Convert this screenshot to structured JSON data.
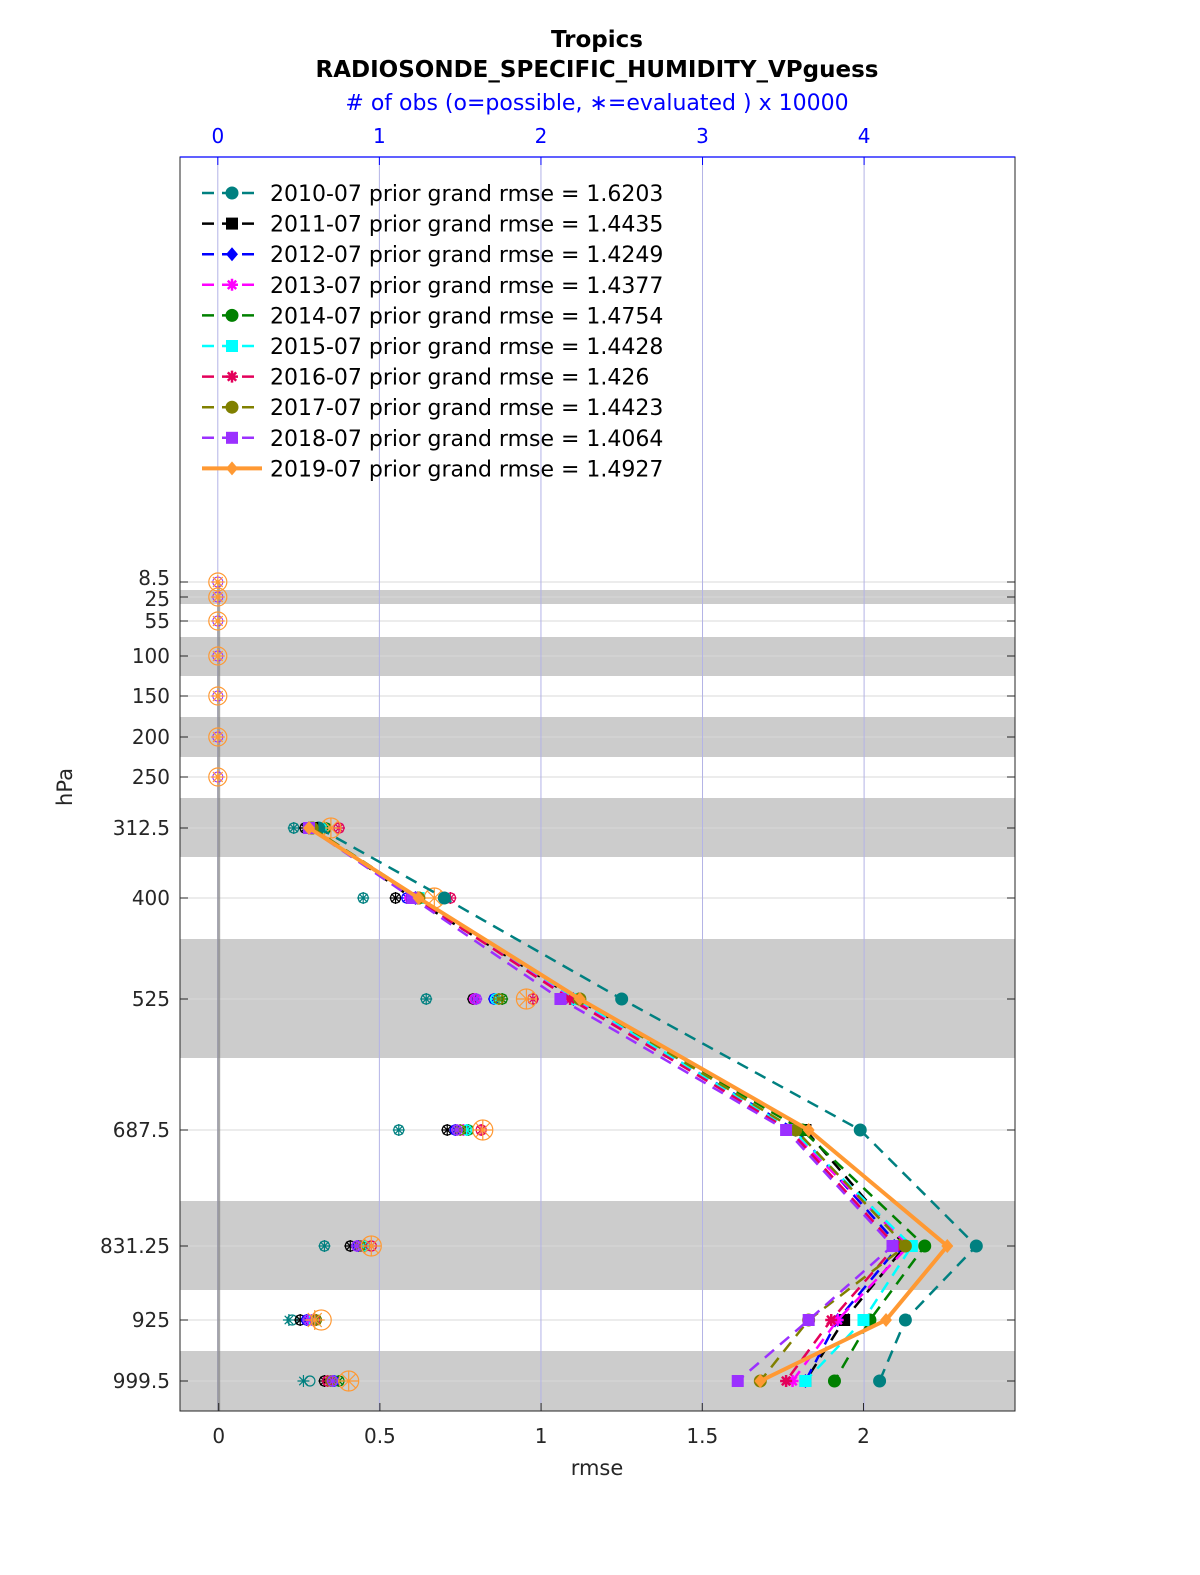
{
  "chart_data": {
    "type": "line",
    "title": "Tropics",
    "subtitle": "RADIOSONDE_SPECIFIC_HUMIDITY_VPguess",
    "top_axis_label": "# of obs (o=possible, ∗=evaluated ) x 10000",
    "top_axis_ticks": [
      "0",
      "1",
      "2",
      "3",
      "4"
    ],
    "top_axis_range": [
      -0.234,
      4.934
    ],
    "xlabel": "rmse",
    "ylabel": "hPa",
    "xlim": [
      -0.12,
      2.47
    ],
    "x_ticks": [
      "0",
      "0.5",
      "1",
      "1.5",
      "2"
    ],
    "levels": [
      8.5,
      25,
      55,
      100,
      150,
      200,
      250,
      312.5,
      400,
      525,
      687.5,
      831.25,
      925,
      999.5
    ],
    "level_labels": [
      "8.5",
      "25",
      "55",
      "100",
      "150",
      "200",
      "250",
      "312.5",
      "400",
      "525",
      "687.5",
      "831.25",
      "925",
      "999.5"
    ],
    "legend_position": "top-left",
    "grid": true,
    "series": [
      {
        "name": "2010-07 prior grand rmse = 1.6203",
        "color": "#008080",
        "dash": true,
        "marker": "circle",
        "rmse": [
          0.31,
          0.7,
          1.25,
          1.99,
          2.35,
          2.13,
          2.05
        ],
        "possible": [
          0.47,
          0.9,
          1.29,
          1.12,
          0.66,
          0.46,
          0.57
        ],
        "evaluated": [
          0.47,
          0.9,
          1.29,
          1.12,
          0.66,
          0.44,
          0.53
        ]
      },
      {
        "name": "2011-07 prior grand rmse = 1.4435",
        "color": "#000000",
        "dash": true,
        "marker": "square",
        "rmse": [
          0.29,
          0.6,
          1.11,
          1.82,
          2.13,
          1.94,
          1.82
        ],
        "possible": [
          0.54,
          1.1,
          1.58,
          1.42,
          0.82,
          0.51,
          0.66
        ],
        "evaluated": [
          0.54,
          1.1,
          1.58,
          1.42,
          0.82,
          0.51,
          0.66
        ]
      },
      {
        "name": "2012-07 prior grand rmse = 1.4249",
        "color": "#0000ff",
        "dash": true,
        "marker": "diamond",
        "rmse": [
          0.28,
          0.61,
          1.1,
          1.79,
          2.11,
          1.92,
          1.82
        ],
        "possible": [
          0.6,
          1.17,
          1.71,
          1.47,
          0.87,
          0.55,
          0.72
        ],
        "evaluated": [
          0.6,
          1.17,
          1.71,
          1.47,
          0.87,
          0.55,
          0.72
        ]
      },
      {
        "name": "2013-07 prior grand rmse = 1.4377",
        "color": "#ff00ff",
        "dash": true,
        "marker": "star",
        "rmse": [
          0.28,
          0.61,
          1.1,
          1.77,
          2.14,
          1.92,
          1.78
        ],
        "possible": [
          0.62,
          1.19,
          1.59,
          1.52,
          0.89,
          0.58,
          0.7
        ],
        "evaluated": [
          0.62,
          1.19,
          1.59,
          1.52,
          0.89,
          0.58,
          0.7
        ]
      },
      {
        "name": "2014-07 prior grand rmse = 1.4754",
        "color": "#008000",
        "dash": true,
        "marker": "circle",
        "rmse": [
          0.29,
          0.62,
          1.12,
          1.81,
          2.19,
          2.02,
          1.91
        ],
        "possible": [
          0.67,
          1.25,
          1.76,
          1.55,
          0.91,
          0.61,
          0.75
        ],
        "evaluated": [
          0.67,
          1.25,
          1.76,
          1.55,
          0.91,
          0.61,
          0.75
        ]
      },
      {
        "name": "2015-07 prior grand rmse = 1.4428",
        "color": "#00ffff",
        "dash": true,
        "marker": "square",
        "rmse": [
          0.28,
          0.62,
          1.11,
          1.78,
          2.15,
          2.0,
          1.82
        ],
        "possible": [
          0.64,
          1.24,
          1.72,
          1.54,
          0.9,
          0.59,
          0.71
        ],
        "evaluated": [
          0.64,
          1.24,
          1.72,
          1.54,
          0.9,
          0.59,
          0.71
        ]
      },
      {
        "name": "2016-07 prior grand rmse = 1.426",
        "color": "#e3005a",
        "dash": true,
        "marker": "star",
        "rmse": [
          0.28,
          0.61,
          1.09,
          1.77,
          2.1,
          1.9,
          1.76
        ],
        "possible": [
          0.75,
          1.44,
          1.95,
          1.63,
          0.95,
          0.6,
          0.68
        ],
        "evaluated": [
          0.75,
          1.44,
          1.95,
          1.63,
          0.95,
          0.6,
          0.68
        ]
      },
      {
        "name": "2017-07 prior grand rmse = 1.4423",
        "color": "#808000",
        "dash": true,
        "marker": "circle",
        "rmse": [
          0.29,
          0.62,
          1.12,
          1.79,
          2.13,
          1.83,
          1.68
        ],
        "possible": [
          0.63,
          1.24,
          1.74,
          1.5,
          0.88,
          0.61,
          0.7
        ],
        "evaluated": [
          0.63,
          1.24,
          1.74,
          1.5,
          0.88,
          0.61,
          0.7
        ]
      },
      {
        "name": "2018-07 prior grand rmse = 1.4064",
        "color": "#9b30ff",
        "dash": true,
        "marker": "square",
        "rmse": [
          0.28,
          0.6,
          1.06,
          1.76,
          2.09,
          1.83,
          1.61
        ],
        "possible": [
          0.61,
          1.21,
          1.6,
          1.48,
          0.86,
          0.56,
          0.71
        ],
        "evaluated": [
          0.61,
          1.21,
          1.6,
          1.48,
          0.86,
          0.56,
          0.71
        ]
      },
      {
        "name": "2019-07 prior grand rmse = 1.4927",
        "color": "#ff9933",
        "dash": false,
        "marker": "diamond",
        "rmse": [
          0.28,
          0.62,
          1.12,
          1.83,
          2.26,
          2.07,
          1.68
        ],
        "possible": [
          0.7,
          1.34,
          1.91,
          1.64,
          0.95,
          0.64,
          0.81
        ],
        "evaluated": [
          0.7,
          1.34,
          1.91,
          1.64,
          0.95,
          0.6,
          0.81
        ]
      }
    ]
  }
}
